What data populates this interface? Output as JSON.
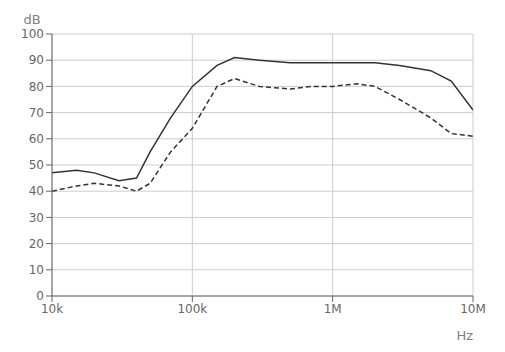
{
  "chart_data": {
    "type": "line",
    "xlabel": "Hz",
    "ylabel": "dB",
    "log": "x",
    "grid": true,
    "xlim": [
      10000,
      10000000
    ],
    "ylim": [
      0,
      100
    ],
    "xticks": [
      {
        "value": 10000,
        "label": "10k"
      },
      {
        "value": 100000,
        "label": "100k"
      },
      {
        "value": 1000000,
        "label": "1M"
      },
      {
        "value": 10000000,
        "label": "10M"
      }
    ],
    "yticks": [
      0,
      10,
      20,
      30,
      40,
      50,
      60,
      70,
      80,
      90,
      100
    ],
    "x": [
      10000,
      15000,
      20000,
      30000,
      40000,
      50000,
      70000,
      100000,
      150000,
      200000,
      300000,
      500000,
      700000,
      1000000,
      1500000,
      2000000,
      3000000,
      5000000,
      7000000,
      10000000
    ],
    "series": [
      {
        "color": "#333333",
        "line_style": "solid",
        "values": [
          47,
          48,
          47,
          44,
          45,
          55,
          68,
          80,
          88,
          91,
          90,
          89,
          89,
          89,
          89,
          89,
          88,
          86,
          82,
          71
        ]
      },
      {
        "color": "#333333",
        "line_style": "dashed",
        "values": [
          40,
          42,
          43,
          42,
          40,
          43,
          55,
          64,
          80,
          83,
          80,
          79,
          80,
          80,
          81,
          80,
          75,
          68,
          62,
          61
        ]
      }
    ]
  }
}
